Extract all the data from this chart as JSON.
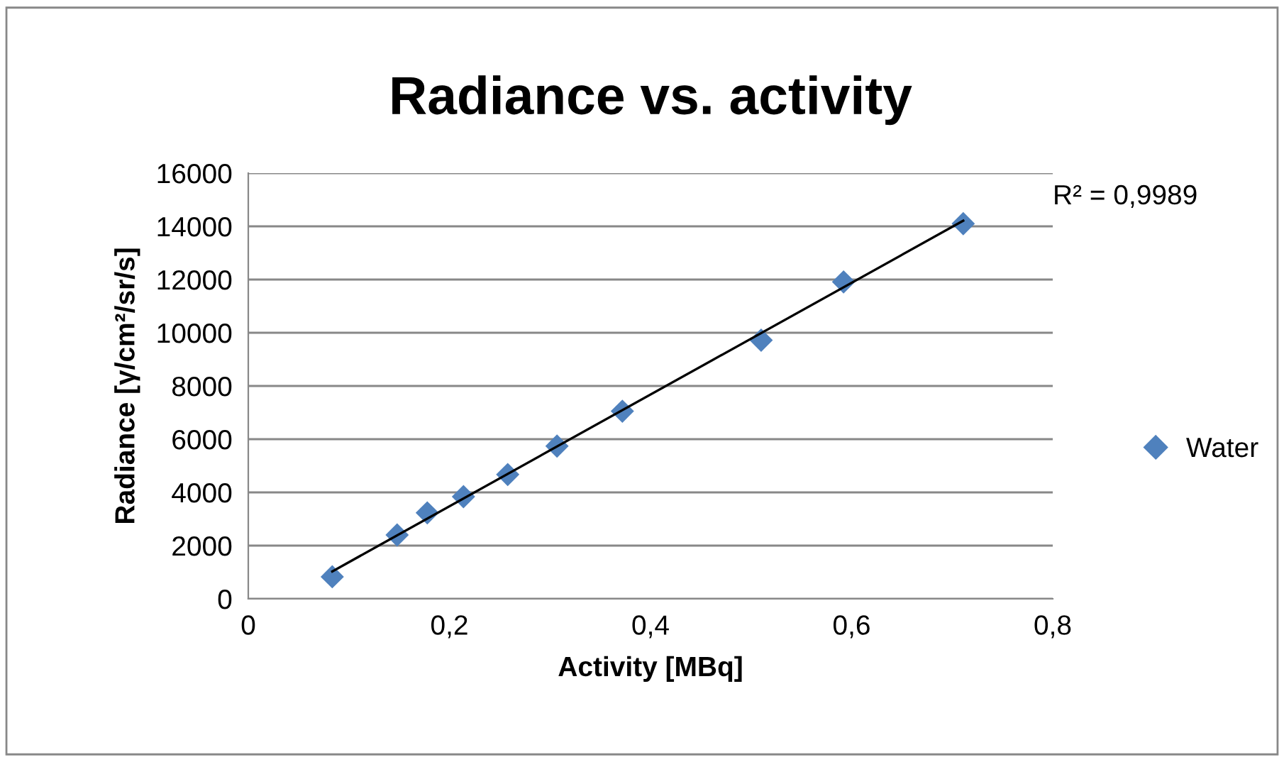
{
  "chart_data": {
    "type": "scatter",
    "title": "Radiance vs. activity",
    "xlabel": "Activity [MBq]",
    "ylabel": "Radiance [γ/cm²/sr/s]",
    "x": [
      0.0835,
      0.148,
      0.178,
      0.214,
      0.258,
      0.307,
      0.372,
      0.51,
      0.592,
      0.711
    ],
    "series": [
      {
        "name": "Water",
        "color": "#4f81bd",
        "marker": "diamond",
        "values": [
          830,
          2400,
          3230,
          3840,
          4670,
          5740,
          7050,
          9720,
          11910,
          14100
        ]
      },
      {
        "type": "line",
        "color": "#000000",
        "marker": "none",
        "x": [
          0.0835,
          0.711
        ],
        "values": [
          1030,
          14210
        ]
      }
    ],
    "annotations": [
      "R² = 0,9989"
    ],
    "xlim": [
      0,
      0.8
    ],
    "xticks": [
      0,
      {
        "value": 0.2,
        "label": "0,2"
      },
      {
        "value": 0.4,
        "label": "0,4"
      },
      {
        "value": 0.6,
        "label": "0,6"
      },
      {
        "value": 0.8,
        "label": "0,8"
      }
    ],
    "ylim": [
      0,
      16000
    ],
    "yticks": [
      0,
      2000,
      4000,
      6000,
      8000,
      10000,
      12000,
      14000,
      16000
    ],
    "grid": "y",
    "legend": "right"
  }
}
